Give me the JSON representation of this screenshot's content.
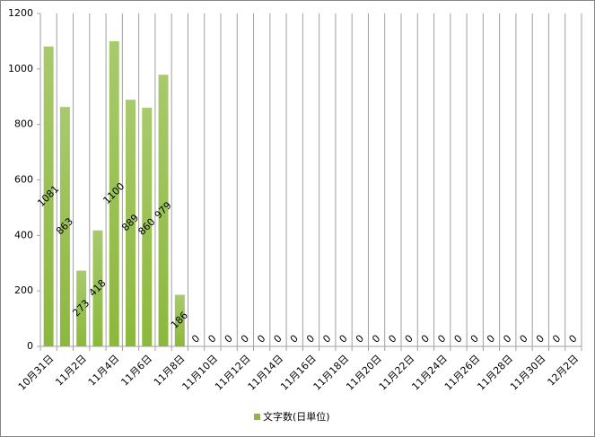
{
  "chart_data": {
    "type": "bar",
    "categories": [
      "10月31日",
      null,
      "11月2日",
      null,
      "11月4日",
      null,
      "11月6日",
      null,
      "11月8日",
      null,
      "11月10日",
      null,
      "11月12日",
      null,
      "11月14日",
      null,
      "11月16日",
      null,
      "11月18日",
      null,
      "11月20日",
      null,
      "11月22日",
      null,
      "11月24日",
      null,
      "11月26日",
      null,
      "11月28日",
      null,
      "11月30日",
      null,
      "12月2日"
    ],
    "series": [
      {
        "name": "文字数(日単位)",
        "color": "#8cb83c",
        "values": [
          1081,
          863,
          273,
          418,
          1100,
          889,
          860,
          979,
          186,
          0,
          0,
          0,
          0,
          0,
          0,
          0,
          0,
          0,
          0,
          0,
          0,
          0,
          0,
          0,
          0,
          0,
          0,
          0,
          0,
          0,
          0,
          0,
          0
        ]
      }
    ],
    "ylim": [
      0,
      1200
    ],
    "yticks": [
      0,
      200,
      400,
      600,
      800,
      1000,
      1200
    ],
    "legend": "bottom"
  }
}
